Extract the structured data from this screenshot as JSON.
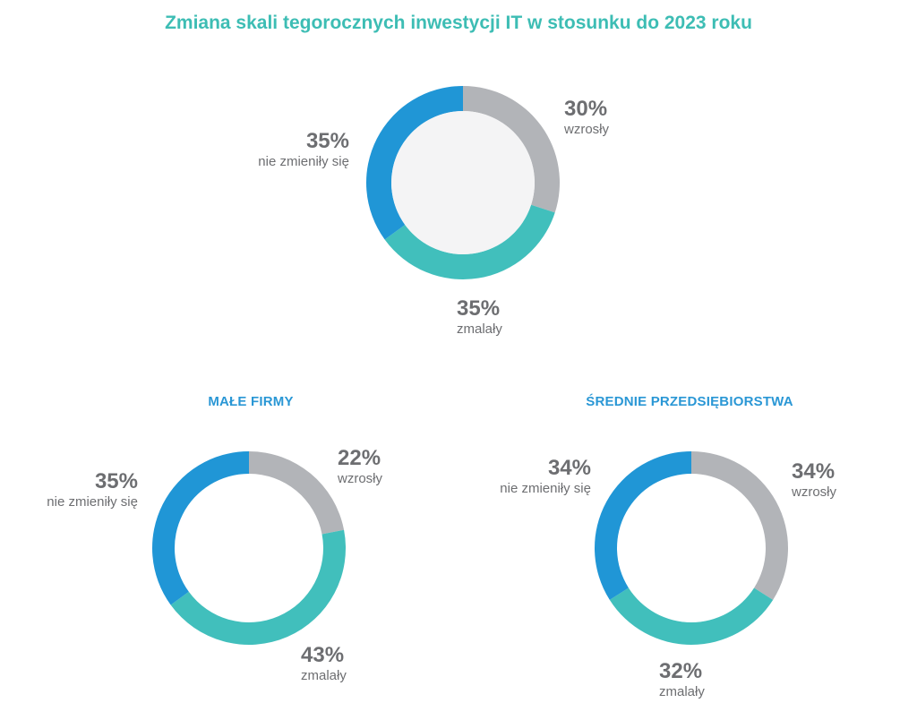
{
  "title": "Zmiana skali tegorocznych inwestycji IT w stosunku do 2023 roku",
  "colors": {
    "title": "#3dbdb4",
    "subtitle": "#2a97d5",
    "wzrosly": "#b2b4b8",
    "zmalaly": "#41bfbc",
    "nie_zmienily": "#2096d6",
    "center_fill": "#f4f4f5",
    "label": "#6d6e71"
  },
  "chart_data": [
    {
      "type": "pie",
      "title": "",
      "labels": [
        "wzrosły",
        "zmalały",
        "nie zmieniły się"
      ],
      "values": [
        30,
        35,
        35
      ],
      "value_labels": [
        "30%",
        "35%",
        "35%"
      ]
    },
    {
      "type": "pie",
      "title": "MAŁE FIRMY",
      "labels": [
        "wzrosły",
        "zmalały",
        "nie zmieniły się"
      ],
      "values": [
        22,
        43,
        35
      ],
      "value_labels": [
        "22%",
        "43%",
        "35%"
      ]
    },
    {
      "type": "pie",
      "title": "ŚREDNIE PRZEDSIĘBIORSTWA",
      "labels": [
        "wzrosły",
        "zmalały",
        "nie zmieniły się"
      ],
      "values": [
        34,
        32,
        34
      ],
      "value_labels": [
        "34%",
        "32%",
        "34%"
      ]
    }
  ]
}
